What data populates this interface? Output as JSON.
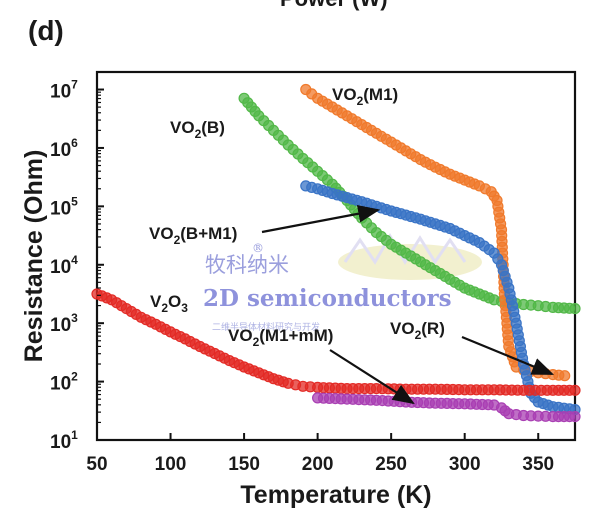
{
  "panel_label": "(d)",
  "clipped_header": "Power (W)",
  "watermark": {
    "chinese": "牧科纳米",
    "registered": "®",
    "english": "2D semiconductors",
    "small": "二维半导体材料研究与开发"
  },
  "chart_data": {
    "type": "scatter",
    "xlabel": "Temperature (K)",
    "ylabel": "Resistance (Ohm)",
    "xlim": [
      50,
      375
    ],
    "ylim_log10": [
      1,
      7.3
    ],
    "log_y": true,
    "grid": false,
    "x_ticks": [
      50,
      100,
      150,
      200,
      250,
      300,
      350
    ],
    "x_tick_labels": [
      "50",
      "100",
      "150",
      "200",
      "250",
      "300",
      "350"
    ],
    "y_ticks_log10": [
      1,
      2,
      3,
      4,
      5,
      6,
      7
    ],
    "y_tick_labels": [
      {
        "base": "10",
        "exp": "1"
      },
      {
        "base": "10",
        "exp": "2"
      },
      {
        "base": "10",
        "exp": "3"
      },
      {
        "base": "10",
        "exp": "4"
      },
      {
        "base": "10",
        "exp": "5"
      },
      {
        "base": "10",
        "exp": "6"
      },
      {
        "base": "10",
        "exp": "7"
      }
    ],
    "series": [
      {
        "name": "VO2(B)",
        "color": "#52b848",
        "x": [
          150,
          160,
          170,
          180,
          190,
          200,
          210,
          220,
          230,
          240,
          250,
          260,
          270,
          280,
          290,
          300,
          310,
          320,
          330,
          340,
          350,
          360,
          375
        ],
        "log10y": [
          6.85,
          6.55,
          6.3,
          6.05,
          5.82,
          5.6,
          5.38,
          5.1,
          4.8,
          4.55,
          4.35,
          4.2,
          4.05,
          3.9,
          3.75,
          3.6,
          3.5,
          3.4,
          3.35,
          3.32,
          3.3,
          3.27,
          3.25
        ]
      },
      {
        "name": "VO2(M1)",
        "color": "#f07a2c",
        "x": [
          192,
          200,
          210,
          220,
          230,
          240,
          250,
          260,
          270,
          280,
          290,
          300,
          310,
          318,
          322,
          325,
          327,
          330,
          335,
          340,
          350,
          360,
          368
        ],
        "log10y": [
          7.0,
          6.85,
          6.7,
          6.55,
          6.4,
          6.25,
          6.1,
          5.95,
          5.8,
          5.67,
          5.55,
          5.45,
          5.35,
          5.25,
          5.1,
          4.6,
          3.5,
          2.6,
          2.25,
          2.2,
          2.15,
          2.12,
          2.1
        ]
      },
      {
        "name": "VO2(B+M1)",
        "color": "#3a74c6",
        "x": [
          192,
          200,
          210,
          220,
          230,
          240,
          250,
          260,
          270,
          280,
          290,
          300,
          310,
          320,
          325,
          330,
          335,
          340,
          345,
          350,
          360,
          375
        ],
        "log10y": [
          5.35,
          5.3,
          5.22,
          5.15,
          5.08,
          5.0,
          4.92,
          4.85,
          4.78,
          4.7,
          4.62,
          4.5,
          4.38,
          4.2,
          4.0,
          3.6,
          3.0,
          2.3,
          1.8,
          1.65,
          1.57,
          1.52
        ]
      },
      {
        "name": "V2O3",
        "color": "#e32b26",
        "x": [
          50,
          60,
          70,
          80,
          90,
          100,
          110,
          120,
          130,
          140,
          150,
          160,
          170,
          180,
          190,
          200,
          220,
          240,
          260,
          280,
          300,
          320,
          340,
          360,
          375
        ],
        "log10y": [
          3.5,
          3.4,
          3.25,
          3.1,
          2.98,
          2.85,
          2.73,
          2.6,
          2.48,
          2.36,
          2.25,
          2.15,
          2.05,
          1.97,
          1.92,
          1.9,
          1.88,
          1.88,
          1.87,
          1.87,
          1.86,
          1.86,
          1.85,
          1.85,
          1.85
        ]
      },
      {
        "name": "VO2(M1+mM)",
        "color": "#a93fb3",
        "x": [
          200,
          220,
          240,
          260,
          280,
          300,
          320,
          325,
          330,
          340,
          350,
          360,
          375
        ],
        "log10y": [
          1.72,
          1.7,
          1.68,
          1.65,
          1.63,
          1.62,
          1.6,
          1.55,
          1.45,
          1.42,
          1.41,
          1.4,
          1.4
        ]
      }
    ],
    "annotations": [
      {
        "text": "VO2(B)",
        "base": "VO",
        "sub": "2",
        "rest": "(B)"
      },
      {
        "text": "VO2(M1)",
        "base": "VO",
        "sub": "2",
        "rest": "(M1)"
      },
      {
        "text": "VO2(B+M1)",
        "base": "VO",
        "sub": "2",
        "rest": "(B+M1)"
      },
      {
        "text": "V2O3",
        "base": "V",
        "sub": "2",
        "rest": "O",
        "sub2": "3"
      },
      {
        "text": "VO2(M1+mM)",
        "base": "VO",
        "sub": "2",
        "rest": "(M1+mM)"
      },
      {
        "text": "VO2(R)",
        "base": "VO",
        "sub": "2",
        "rest": "(R)"
      }
    ]
  }
}
